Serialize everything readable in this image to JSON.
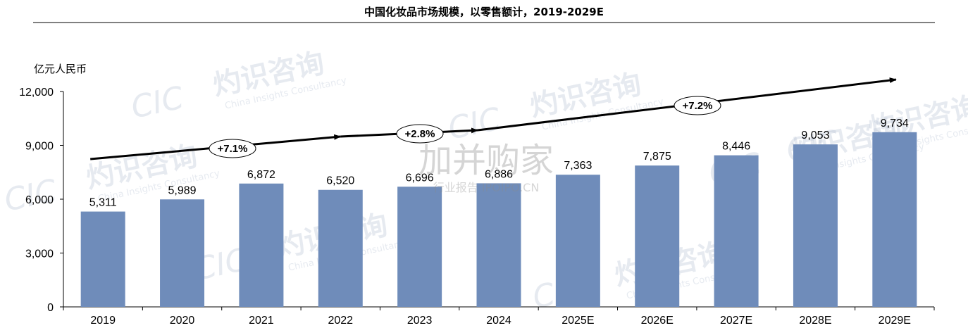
{
  "header": {
    "title": "中国化妆品市场规模，以零售额计，2019-2029E",
    "unit_label": "亿元人民币"
  },
  "watermarks": {
    "brand": "CIC",
    "cn": "灼识咨询",
    "en": "China Insights Consultancy",
    "site_big": "加并购家",
    "site_small": "行业报告 IPOIPO.CN"
  },
  "colors": {
    "bar": "#6f8cba",
    "axis": "#000000",
    "trend": "#000000"
  },
  "chart_data": {
    "type": "bar",
    "title": "中国化妆品市场规模，以零售额计，2019-2029E",
    "ylabel": "亿元人民币",
    "xlabel": "",
    "ylim": [
      0,
      12000
    ],
    "yticks": [
      0,
      3000,
      6000,
      9000,
      12000
    ],
    "ytick_labels": [
      "0",
      "3,000",
      "6,000",
      "9,000",
      "12,000"
    ],
    "grid": false,
    "categories": [
      "2019",
      "2020",
      "2021",
      "2022",
      "2023",
      "2024",
      "2025E",
      "2026E",
      "2027E",
      "2028E",
      "2029E"
    ],
    "values": [
      5311,
      5989,
      6872,
      6520,
      6696,
      6886,
      7363,
      7875,
      8446,
      9053,
      9734
    ],
    "value_labels": [
      "5,311",
      "5,989",
      "6,872",
      "6,520",
      "6,696",
      "6,886",
      "7,363",
      "7,875",
      "8,446",
      "9,053",
      "9,734"
    ],
    "annotations": [
      {
        "label": "+7.1%",
        "from": "2019",
        "to": "2022"
      },
      {
        "label": "+2.8%",
        "from": "2022",
        "to": "2024"
      },
      {
        "label": "+7.2%",
        "from": "2024",
        "to": "2029E"
      }
    ]
  }
}
